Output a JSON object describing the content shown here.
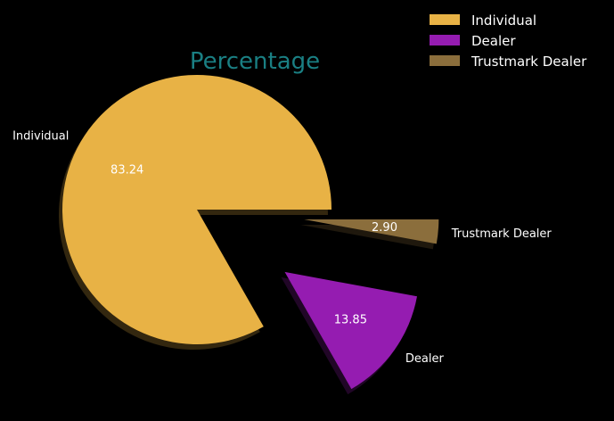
{
  "chart_data": {
    "type": "pie",
    "title": "Percentage",
    "categories": [
      "Individual",
      "Dealer",
      "Trustmark Dealer"
    ],
    "values": [
      83.24,
      13.85,
      2.9
    ],
    "value_labels": [
      "83.24",
      "13.85",
      "2.90"
    ],
    "exploded": [
      false,
      true,
      true
    ],
    "shadow": true,
    "legend": "top-right",
    "colors": {
      "Individual": "#e8b245",
      "Dealer": "#951cb1",
      "Trustmark Dealer": "#8b6e3c",
      "title": "#1a7f83",
      "text": "#ffffff",
      "background": "#000000"
    }
  }
}
